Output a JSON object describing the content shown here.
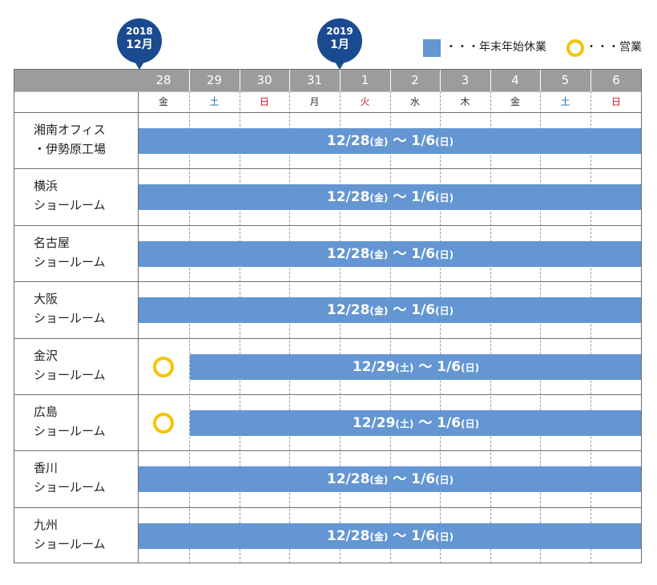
{
  "markers": [
    {
      "year": "2018",
      "month": "12月"
    },
    {
      "year": "2019",
      "month": "1月"
    }
  ],
  "legend": {
    "closed": "・・・年末年始休業",
    "open": "・・・営業"
  },
  "colors": {
    "closed_bar": "#6396d2",
    "open_ring": "#f6c400",
    "header": "#9c9c9c",
    "marker": "#1a4a8f"
  },
  "chart_data": {
    "type": "table",
    "days": [
      {
        "date": "28",
        "weekday": "金",
        "kind": "plain"
      },
      {
        "date": "29",
        "weekday": "土",
        "kind": "sat"
      },
      {
        "date": "30",
        "weekday": "日",
        "kind": "red"
      },
      {
        "date": "31",
        "weekday": "月",
        "kind": "plain"
      },
      {
        "date": "1",
        "weekday": "火",
        "kind": "red"
      },
      {
        "date": "2",
        "weekday": "水",
        "kind": "plain"
      },
      {
        "date": "3",
        "weekday": "木",
        "kind": "plain"
      },
      {
        "date": "4",
        "weekday": "金",
        "kind": "plain"
      },
      {
        "date": "5",
        "weekday": "土",
        "kind": "sat"
      },
      {
        "date": "6",
        "weekday": "日",
        "kind": "red"
      }
    ],
    "rows": [
      {
        "line1": "湘南オフィス",
        "line2": "・伊勢原工場",
        "open_days": [],
        "closed_from": 0,
        "start": "12/28",
        "start_day": "金",
        "end": "1/6",
        "end_day": "日"
      },
      {
        "line1": "横浜",
        "line2": "ショールーム",
        "open_days": [],
        "closed_from": 0,
        "start": "12/28",
        "start_day": "金",
        "end": "1/6",
        "end_day": "日"
      },
      {
        "line1": "名古屋",
        "line2": "ショールーム",
        "open_days": [],
        "closed_from": 0,
        "start": "12/28",
        "start_day": "金",
        "end": "1/6",
        "end_day": "日"
      },
      {
        "line1": "大阪",
        "line2": "ショールーム",
        "open_days": [],
        "closed_from": 0,
        "start": "12/28",
        "start_day": "金",
        "end": "1/6",
        "end_day": "日"
      },
      {
        "line1": "金沢",
        "line2": "ショールーム",
        "open_days": [
          0
        ],
        "closed_from": 1,
        "start": "12/29",
        "start_day": "土",
        "end": "1/6",
        "end_day": "日"
      },
      {
        "line1": "広島",
        "line2": "ショールーム",
        "open_days": [
          0
        ],
        "closed_from": 1,
        "start": "12/29",
        "start_day": "土",
        "end": "1/6",
        "end_day": "日"
      },
      {
        "line1": "香川",
        "line2": "ショールーム",
        "open_days": [],
        "closed_from": 0,
        "start": "12/28",
        "start_day": "金",
        "end": "1/6",
        "end_day": "日"
      },
      {
        "line1": "九州",
        "line2": "ショールーム",
        "open_days": [],
        "closed_from": 0,
        "start": "12/28",
        "start_day": "金",
        "end": "1/6",
        "end_day": "日"
      }
    ]
  }
}
